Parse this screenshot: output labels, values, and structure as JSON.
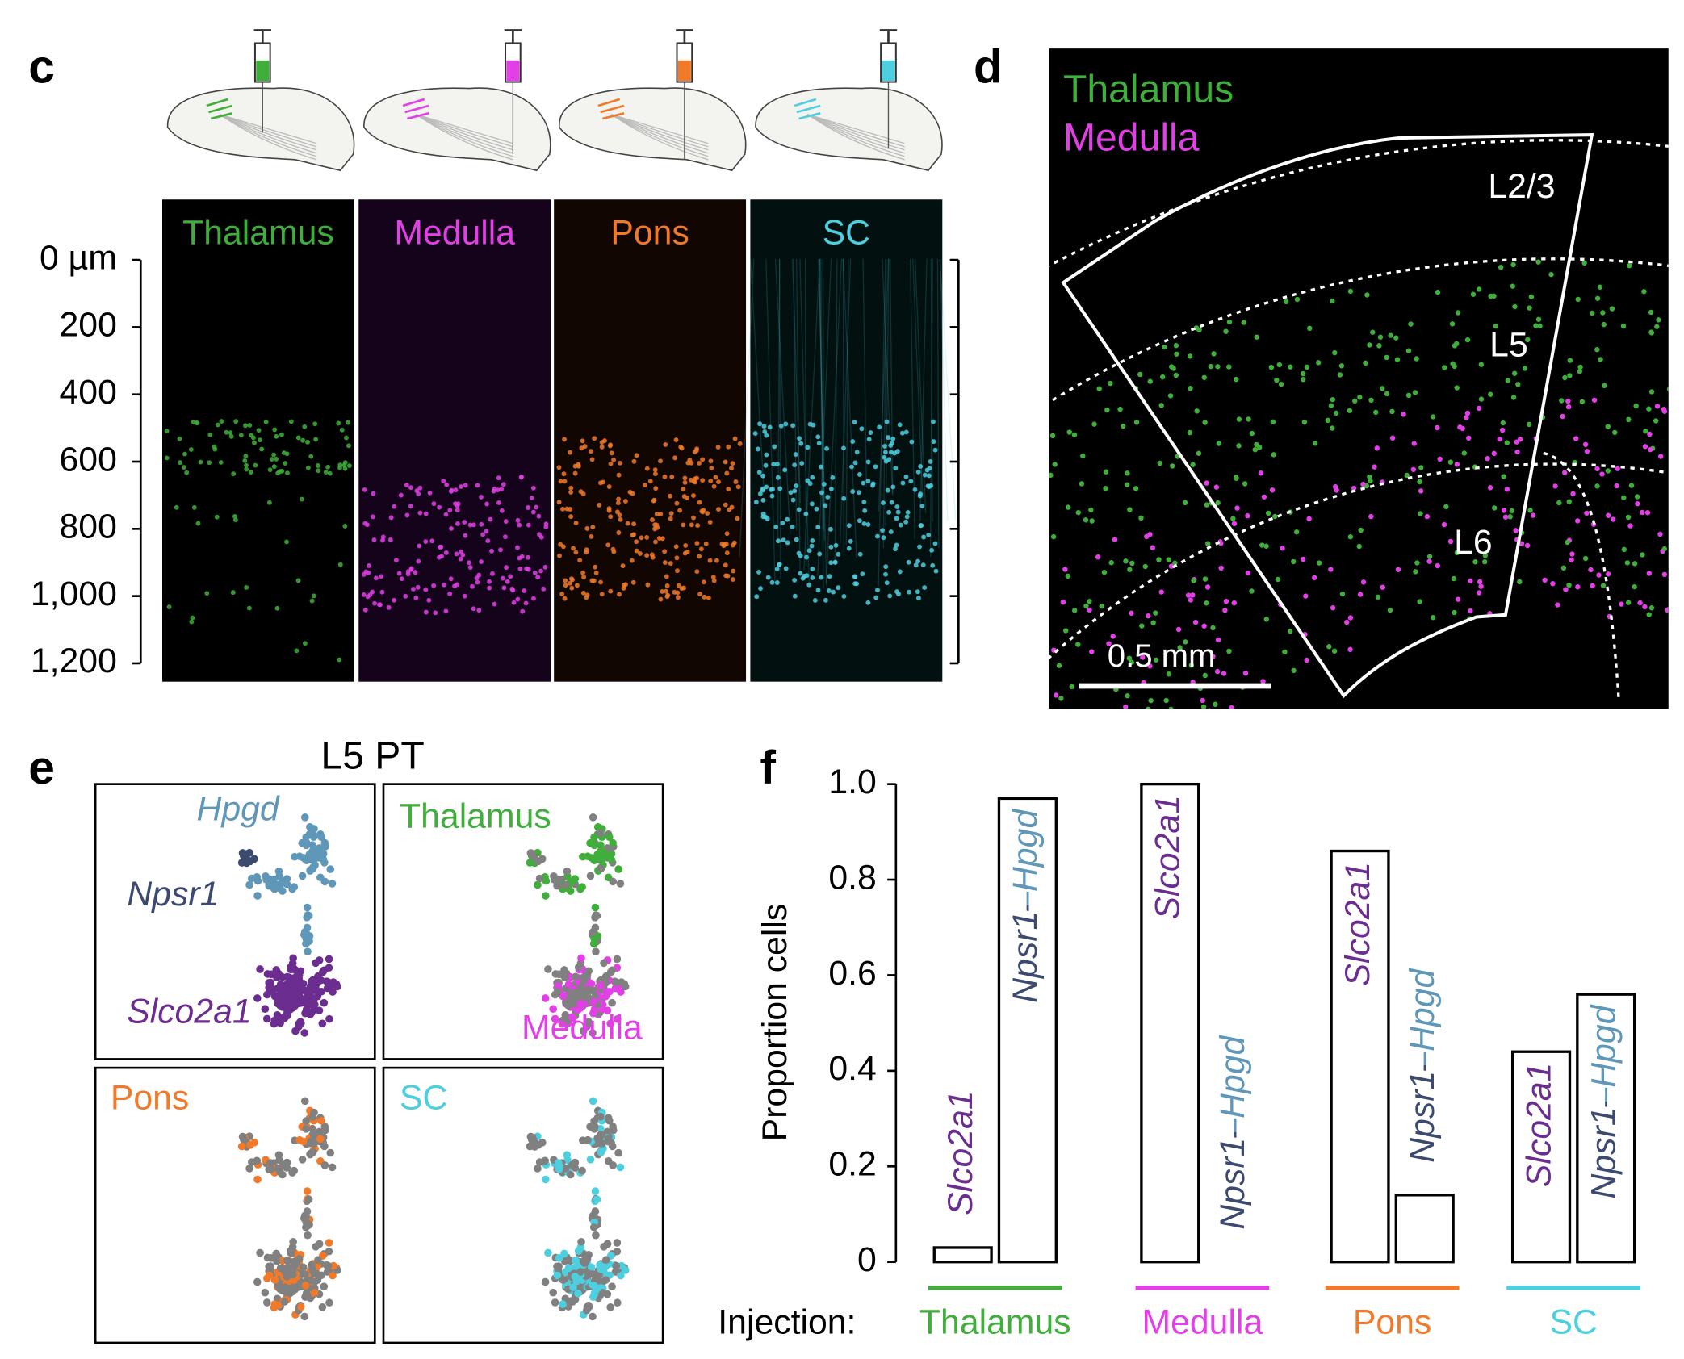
{
  "panels": {
    "c": {
      "label": "c",
      "regions": [
        "Thalamus",
        "Medulla",
        "Pons",
        "SC"
      ],
      "region_colors": [
        "#3fae3a",
        "#e23fe6",
        "#f07a2a",
        "#4dcfe0"
      ],
      "depth_axis": {
        "ylim": [
          0,
          1200
        ],
        "yticks": [
          {
            "value": 0,
            "label": "0 µm"
          },
          200,
          400,
          600,
          800,
          {
            "value": 1000,
            "label": "1,000"
          },
          {
            "value": 1200,
            "label": "1,200"
          }
        ]
      }
    },
    "d": {
      "label": "d",
      "channels": [
        "Thalamus",
        "Medulla"
      ],
      "channel_colors": [
        "#3fae3a",
        "#e23fe6"
      ],
      "layers": [
        "L2/3",
        "L5",
        "L6"
      ],
      "scale_bar": "0.5 mm"
    },
    "e": {
      "label": "e",
      "title": "L5 PT",
      "clusters": [
        "Hpgd",
        "Npsr1",
        "Slco2a1"
      ],
      "cluster_colors": [
        "#5f97b8",
        "#3d4a70",
        "#6b2d8f"
      ],
      "injections": [
        "Thalamus",
        "Medulla",
        "Pons",
        "SC"
      ],
      "injection_colors": [
        "#3fae3a",
        "#e23fe6",
        "#f07a2a",
        "#4dcfe0"
      ]
    }
  },
  "chart_data": {
    "type": "bar",
    "panel_label": "f",
    "ylabel": "Proportion cells",
    "x_prefix": "Injection:",
    "categories": [
      "Thalamus",
      "Medulla",
      "Pons",
      "SC"
    ],
    "category_colors": [
      "#3fae3a",
      "#e23fe6",
      "#f07a2a",
      "#4dcfe0"
    ],
    "series": [
      {
        "name": "Slco2a1",
        "color": "#6b2d8f",
        "values": [
          0.03,
          1.0,
          0.86,
          0.44
        ]
      },
      {
        "name": "Npsr1–Hpgd",
        "color": "#4a5a80",
        "values": [
          0.97,
          0,
          0.14,
          0.56
        ]
      }
    ],
    "ylim": [
      0,
      1
    ],
    "yticks": [
      0,
      0.2,
      0.4,
      0.6,
      0.8,
      {
        "value": 1,
        "label": "1.0"
      }
    ]
  }
}
